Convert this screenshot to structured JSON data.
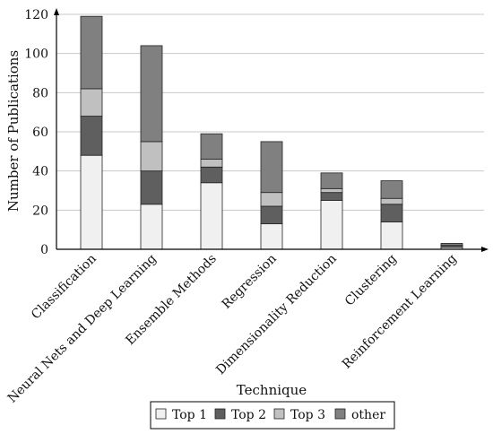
{
  "chart_data": {
    "type": "bar",
    "stacked": true,
    "title": "",
    "xlabel": "Technique",
    "ylabel": "Number of Publications",
    "ylim": [
      0,
      120
    ],
    "yticks": [
      "0",
      "20",
      "40",
      "60",
      "80",
      "100",
      "120"
    ],
    "grid": "horizontal",
    "legend_position": "bottom",
    "categories": [
      "Classification",
      "Neural Nets and Deep Learning",
      "Ensemble Methods",
      "Regression",
      "Dimensionality Reduction",
      "Clustering",
      "Reinforcement Learning"
    ],
    "series": [
      {
        "name": "Top 1",
        "color": "#f0f0f0",
        "values": [
          48,
          23,
          34,
          13,
          25,
          14,
          1
        ]
      },
      {
        "name": "Top 2",
        "color": "#5f5f5f",
        "values": [
          20,
          17,
          8,
          9,
          4,
          9,
          1
        ]
      },
      {
        "name": "Top 3",
        "color": "#c0c0c0",
        "values": [
          14,
          15,
          4,
          7,
          2,
          3,
          0
        ]
      },
      {
        "name": "other",
        "color": "#808080",
        "values": [
          37,
          49,
          13,
          26,
          8,
          9,
          1
        ]
      }
    ]
  }
}
